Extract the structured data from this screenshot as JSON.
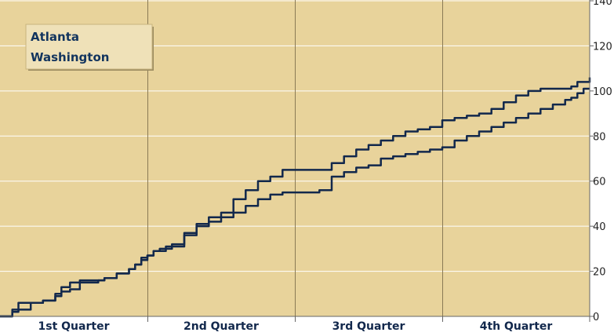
{
  "chart_data": {
    "type": "line",
    "categories": [
      "1st Quarter",
      "2nd Quarter",
      "3rd Quarter",
      "4th Quarter"
    ],
    "xlim": [
      0,
      48
    ],
    "ylim": [
      0,
      140
    ],
    "yticks": [
      0,
      20,
      40,
      60,
      80,
      100,
      120,
      140
    ],
    "grid": true,
    "legend_position": "top-left",
    "series": [
      {
        "name": "Atlanta",
        "x": [
          0,
          1,
          1.5,
          2.5,
          3.5,
          4.5,
          5,
          5.7,
          6.5,
          8,
          8.5,
          9.5,
          10.5,
          11,
          11.5,
          12,
          12.5,
          13,
          13.5,
          14,
          15,
          16,
          17,
          18,
          19,
          20,
          21,
          22,
          23,
          24,
          25,
          26,
          27,
          28,
          29,
          30,
          31,
          32,
          33,
          34,
          35,
          36,
          37,
          38,
          39,
          40,
          41,
          42,
          43,
          44,
          45,
          46,
          46.5,
          47,
          47.5,
          48
        ],
        "values": [
          0,
          2,
          3,
          6,
          7,
          9,
          11,
          12,
          15,
          16,
          17,
          19,
          21,
          23,
          25,
          27,
          29,
          30,
          31,
          32,
          36,
          40,
          42,
          44,
          46,
          49,
          52,
          54,
          55,
          55,
          55,
          56,
          62,
          64,
          66,
          67,
          70,
          71,
          72,
          73,
          74,
          75,
          78,
          80,
          82,
          84,
          86,
          88,
          90,
          92,
          94,
          96,
          97,
          99,
          101,
          101
        ]
      },
      {
        "name": "Washington",
        "x": [
          0,
          1,
          1.5,
          2.5,
          3.5,
          4.5,
          5,
          5.7,
          6.5,
          8,
          8.5,
          9.5,
          10.5,
          11,
          11.5,
          12,
          12.5,
          13,
          13.5,
          14,
          15,
          16,
          17,
          18,
          19,
          20,
          21,
          22,
          23,
          24,
          25,
          26,
          27,
          28,
          29,
          30,
          31,
          32,
          33,
          34,
          35,
          36,
          37,
          38,
          39,
          40,
          41,
          42,
          43,
          44,
          45,
          46,
          46.5,
          47,
          47.5,
          48
        ],
        "values": [
          0,
          3,
          6,
          6,
          7,
          10,
          13,
          15,
          16,
          16,
          17,
          19,
          21,
          23,
          26,
          27,
          29,
          29,
          30,
          31,
          37,
          41,
          44,
          46,
          52,
          56,
          60,
          62,
          65,
          65,
          65,
          65,
          68,
          71,
          74,
          76,
          78,
          80,
          82,
          83,
          84,
          87,
          88,
          89,
          90,
          92,
          95,
          98,
          100,
          101,
          101,
          101,
          102,
          104,
          104,
          106
        ]
      }
    ]
  },
  "colors": {
    "plot_background": "#e8d39b",
    "line": "#12284c",
    "quarter_divider": "#8a7a55",
    "legend_background": "#efe1b8"
  }
}
